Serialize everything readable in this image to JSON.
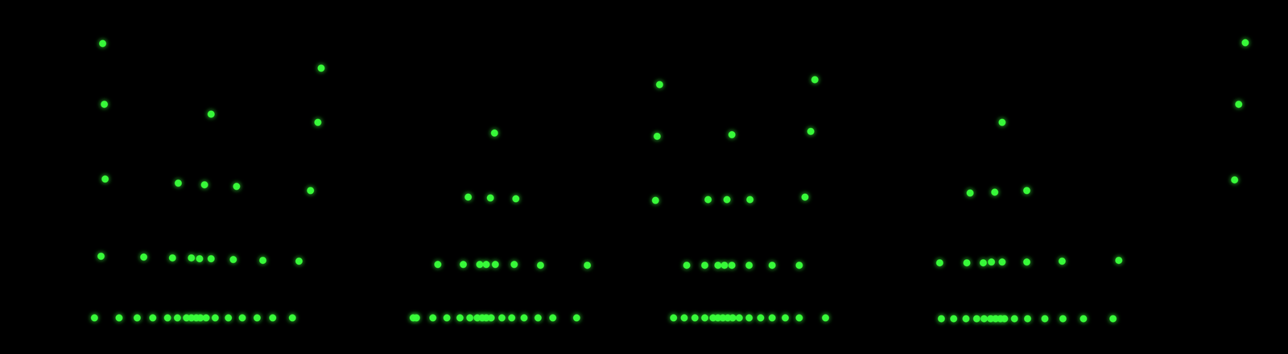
{
  "chart_data": {
    "type": "scatter",
    "color": "#39ff3a",
    "marker": "circle",
    "grid": false,
    "tick_labels": false,
    "xlim": [
      0,
      1568
    ],
    "ylim": [
      0,
      431
    ],
    "x": [
      125,
      127,
      128,
      123,
      115,
      257,
      391,
      387,
      378,
      217,
      249,
      288,
      175,
      210,
      233,
      243,
      257,
      284,
      320,
      364,
      145,
      167,
      186,
      204,
      216,
      227,
      233,
      239,
      244,
      251,
      262,
      278,
      295,
      313,
      332,
      356,
      602,
      570,
      597,
      628,
      533,
      564,
      584,
      592,
      603,
      626,
      658,
      715,
      503,
      507,
      527,
      544,
      560,
      572,
      581,
      587,
      592,
      598,
      611,
      623,
      638,
      655,
      673,
      702,
      803,
      800,
      798,
      992,
      987,
      980,
      891,
      862,
      885,
      913,
      836,
      858,
      874,
      882,
      891,
      912,
      940,
      973,
      820,
      833,
      846,
      858,
      868,
      874,
      880,
      886,
      892,
      900,
      912,
      926,
      940,
      956,
      973,
      1005,
      1220,
      1181,
      1211,
      1250,
      1144,
      1177,
      1197,
      1207,
      1220,
      1250,
      1293,
      1362,
      1146,
      1161,
      1176,
      1189,
      1198,
      1206,
      1212,
      1218,
      1223,
      1235,
      1251,
      1272,
      1294,
      1319,
      1355,
      1516,
      1508,
      1503
    ],
    "values": [
      378,
      304,
      213,
      119,
      44,
      292,
      348,
      282,
      199,
      208,
      206,
      204,
      118,
      117,
      117,
      116,
      116,
      115,
      114,
      113,
      44,
      44,
      44,
      44,
      44,
      44,
      44,
      44,
      44,
      44,
      44,
      44,
      44,
      44,
      44,
      44,
      269,
      191,
      190,
      189,
      109,
      109,
      109,
      109,
      109,
      109,
      108,
      108,
      44,
      44,
      44,
      44,
      44,
      44,
      44,
      44,
      44,
      44,
      44,
      44,
      44,
      44,
      44,
      44,
      328,
      265,
      187,
      334,
      271,
      191,
      267,
      188,
      188,
      188,
      108,
      108,
      108,
      108,
      108,
      108,
      108,
      108,
      44,
      44,
      44,
      44,
      44,
      44,
      44,
      44,
      44,
      44,
      44,
      44,
      44,
      44,
      44,
      44,
      282,
      196,
      197,
      199,
      111,
      111,
      111,
      112,
      112,
      112,
      113,
      114,
      43,
      43,
      43,
      43,
      43,
      43,
      43,
      43,
      43,
      43,
      43,
      43,
      43,
      43,
      43,
      379,
      304,
      212
    ]
  }
}
